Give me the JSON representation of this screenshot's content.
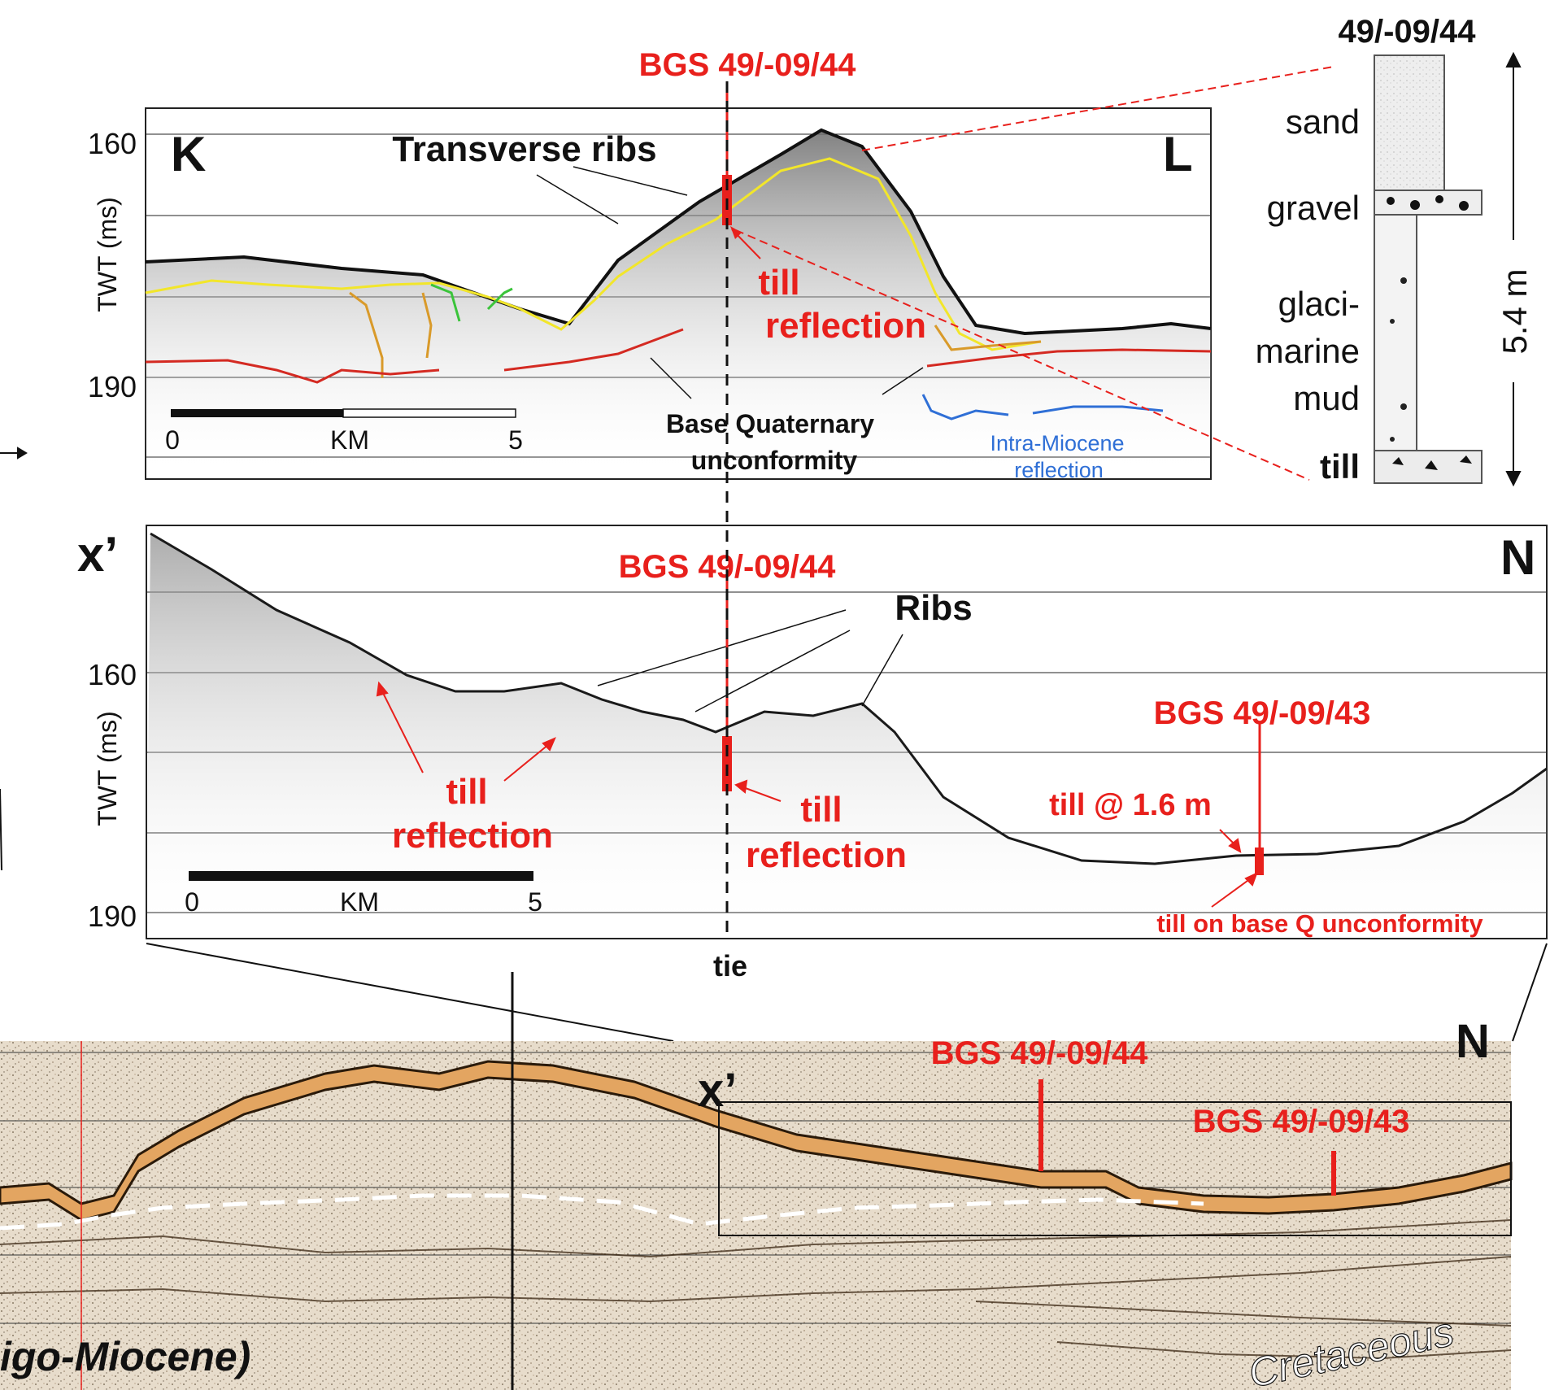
{
  "colors": {
    "annotation_red": "#e8201c",
    "seabed_yellow": "#f2e62a",
    "base_quaternary_red": "#d42a22",
    "miocene_blue": "#2f6fd6",
    "orange_pick": "#d99a2a",
    "green_pick": "#3ac43a",
    "seismic_orange": "#e3a561"
  },
  "core_log": {
    "title": "49/-09/44",
    "units": [
      "sand",
      "gravel",
      "glaci-",
      "marine",
      "mud",
      "till"
    ],
    "thickness_label": "5.4 m"
  },
  "panel_top": {
    "borehole_label": "BGS 49/-09/44",
    "left_end": "K",
    "right_end": "L",
    "feature_label": "Transverse ribs",
    "axis_label": "TWT (ms)",
    "ticks": [
      "160",
      "190"
    ],
    "till_label": [
      "till",
      "reflection"
    ],
    "unconformity_label": [
      "Base Quaternary",
      "unconformity"
    ],
    "miocene_label": [
      "Intra-Miocene",
      "reflection"
    ],
    "scale": {
      "start": "0",
      "unit": "KM",
      "end": "5"
    }
  },
  "panel_middle": {
    "left_end": "x’",
    "right_end": "N",
    "borehole_44": "BGS 49/-09/44",
    "borehole_43": "BGS 49/-09/43",
    "feature_label": "Ribs",
    "axis_label": "TWT (ms)",
    "ticks": [
      "160",
      "190"
    ],
    "till_left": [
      "till",
      "reflection"
    ],
    "till_center": [
      "till",
      "reflection"
    ],
    "till_depth": "till @ 1.6 m",
    "till_base": "till on base Q unconformity",
    "scale": {
      "start": "0",
      "unit": "KM",
      "end": "5"
    },
    "tie_label": "tie"
  },
  "panel_bottom": {
    "right_end": "N",
    "inset_label": "x’",
    "borehole_44": "BGS 49/-09/44",
    "borehole_43": "BGS 49/-09/43",
    "unit_left": "igo-Miocene)",
    "unit_right": "Cretaceous"
  }
}
